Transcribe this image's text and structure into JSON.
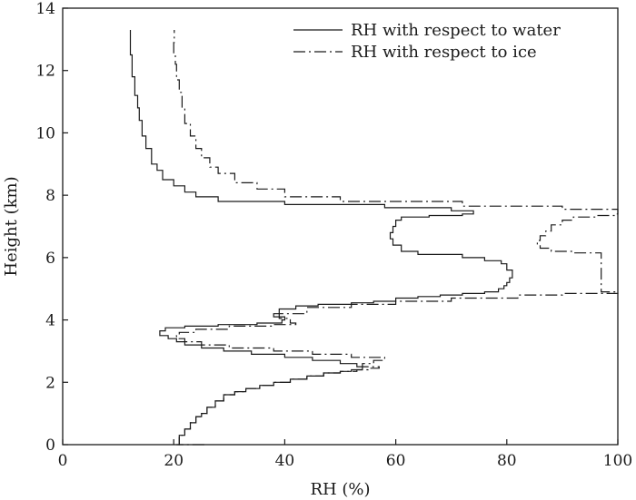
{
  "chart_data": {
    "type": "line",
    "title": "",
    "xlabel": "RH (%)",
    "ylabel": "Height (km)",
    "xlim": [
      0,
      100
    ],
    "ylim": [
      0,
      14
    ],
    "xticks": [
      "0",
      "20",
      "40",
      "60",
      "80",
      "100"
    ],
    "yticks": [
      "0",
      "2",
      "4",
      "6",
      "8",
      "10",
      "12",
      "14"
    ],
    "grid": false,
    "legend_position": "top-right",
    "series": [
      {
        "name": "RH with respect to water",
        "style": "solid",
        "color": "#1a1a1a",
        "x": [
          20.5,
          21.0,
          22.0,
          23.0,
          24.0,
          25.0,
          26.0,
          27.5,
          29.0,
          31.0,
          33.0,
          35.5,
          38.0,
          41.0,
          44.0,
          47.0,
          50.0,
          52.0,
          54.0,
          53.0,
          50.0,
          45.0,
          40.0,
          34.0,
          29.0,
          25.0,
          22.0,
          20.5,
          19.0,
          17.5,
          18.5,
          22.0,
          28.0,
          35.0,
          39.5,
          40.0,
          38.0,
          39.0,
          42.0,
          46.0,
          52.0,
          56.0,
          60.0,
          64.0,
          68.0,
          72.0,
          76.0,
          78.5,
          79.5,
          80.0,
          80.5,
          81.0,
          81.0,
          80.0,
          79.0,
          76.0,
          72.0,
          64.0,
          61.0,
          59.5,
          59.0,
          59.5,
          60.0,
          61.0,
          66.0,
          72.0,
          74.0,
          70.0,
          58.0,
          40.0,
          28.0,
          24.0,
          22.0,
          20.0,
          18.0,
          17.0,
          16.0,
          15.0,
          14.3,
          13.8,
          13.5,
          13.0,
          12.5,
          12.2
        ],
        "y": [
          0.0,
          0.3,
          0.5,
          0.7,
          0.9,
          1.0,
          1.2,
          1.4,
          1.6,
          1.7,
          1.8,
          1.9,
          2.0,
          2.1,
          2.2,
          2.3,
          2.35,
          2.4,
          2.5,
          2.6,
          2.7,
          2.8,
          2.9,
          3.0,
          3.1,
          3.2,
          3.3,
          3.4,
          3.5,
          3.65,
          3.75,
          3.8,
          3.85,
          3.9,
          4.0,
          4.1,
          4.2,
          4.35,
          4.45,
          4.5,
          4.55,
          4.6,
          4.7,
          4.75,
          4.8,
          4.85,
          4.9,
          5.0,
          5.1,
          5.2,
          5.35,
          5.5,
          5.6,
          5.8,
          5.9,
          6.0,
          6.1,
          6.2,
          6.4,
          6.6,
          6.8,
          7.0,
          7.2,
          7.3,
          7.35,
          7.4,
          7.5,
          7.6,
          7.7,
          7.8,
          7.95,
          8.1,
          8.3,
          8.5,
          8.8,
          9.0,
          9.5,
          9.9,
          10.4,
          10.8,
          11.2,
          11.8,
          12.5,
          13.3
        ]
      },
      {
        "name": "RH with respect to ice",
        "style": "dashdot",
        "color": "#1a1a1a",
        "x": [
          25.5,
          21.0,
          22.0,
          23.0,
          24.0,
          25.0,
          26.0,
          27.5,
          29.0,
          31.0,
          33.0,
          35.5,
          38.0,
          41.0,
          44.0,
          47.0,
          50.0,
          53.0,
          55.0,
          57.0,
          54.0,
          56.0,
          58.0,
          52.0,
          45.0,
          38.0,
          30.0,
          25.0,
          22.0,
          20.5,
          21.0,
          24.0,
          30.0,
          38.0,
          42.0,
          41.0,
          39.0,
          44.0,
          52.0,
          60.0,
          70.0,
          82.0,
          90.0,
          100.0,
          97.0,
          92.0,
          88.0,
          86.0,
          85.5,
          86.0,
          87.0,
          88.0,
          88.0,
          90.0,
          92.0,
          96.0,
          99.5,
          100.0,
          90.0,
          72.0,
          50.0,
          40.0,
          35.0,
          31.0,
          28.0,
          26.5,
          25.0,
          24.0,
          23.0,
          22.0,
          21.5,
          21.0,
          20.5,
          20.3,
          20.0,
          20.1
        ],
        "y": [
          0.0,
          0.3,
          0.5,
          0.7,
          0.9,
          1.0,
          1.2,
          1.4,
          1.6,
          1.7,
          1.8,
          1.9,
          2.0,
          2.1,
          2.2,
          2.3,
          2.35,
          2.4,
          2.45,
          2.5,
          2.6,
          2.7,
          2.8,
          2.9,
          3.0,
          3.1,
          3.2,
          3.3,
          3.4,
          3.5,
          3.6,
          3.7,
          3.8,
          3.85,
          3.9,
          4.05,
          4.2,
          4.4,
          4.5,
          4.6,
          4.7,
          4.8,
          4.85,
          4.9,
          6.15,
          6.2,
          6.3,
          6.4,
          6.55,
          6.7,
          6.85,
          6.95,
          7.05,
          7.2,
          7.3,
          7.35,
          7.4,
          7.55,
          7.65,
          7.8,
          7.95,
          8.2,
          8.4,
          8.7,
          8.9,
          9.2,
          9.5,
          9.9,
          10.3,
          10.8,
          11.3,
          11.7,
          12.2,
          12.5,
          12.9,
          13.3
        ]
      }
    ]
  }
}
